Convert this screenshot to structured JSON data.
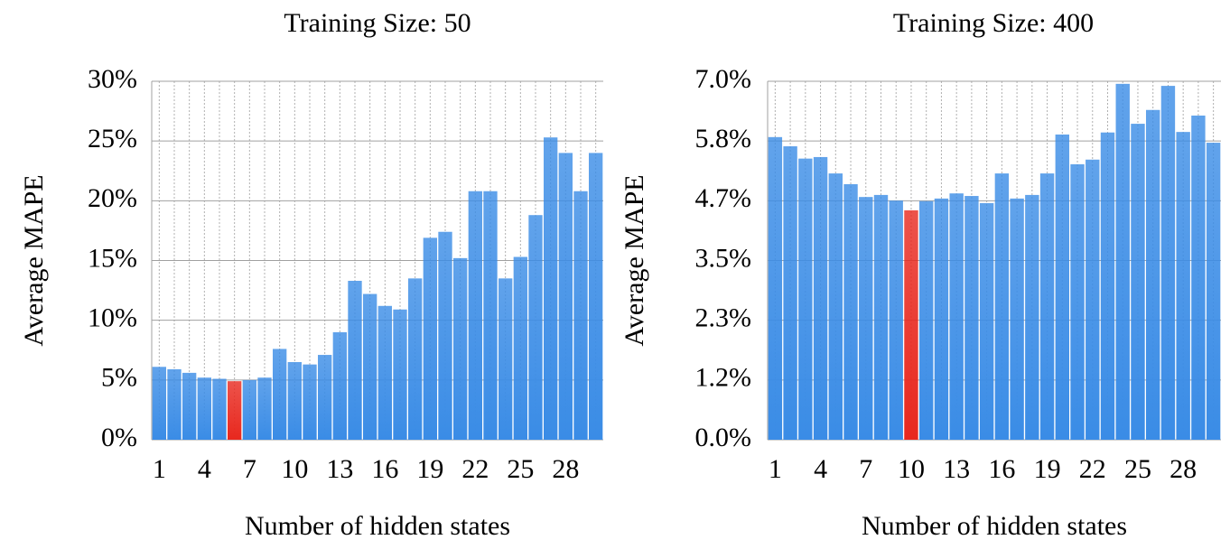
{
  "chart_data": [
    {
      "type": "bar",
      "title": "Training Size: 50",
      "x_label": "Number of hidden states",
      "y_label": "Average MAPE",
      "categories": [
        1,
        null,
        null,
        4,
        null,
        null,
        7,
        null,
        null,
        10,
        null,
        null,
        13,
        null,
        null,
        16,
        null,
        null,
        19,
        null,
        null,
        22,
        null,
        null,
        25,
        null,
        null,
        28,
        null,
        null
      ],
      "values": [
        6.1,
        5.9,
        5.6,
        5.2,
        5.1,
        4.9,
        5.0,
        5.2,
        7.6,
        6.5,
        6.3,
        7.1,
        9.0,
        13.3,
        12.2,
        11.2,
        10.9,
        13.5,
        16.9,
        17.4,
        15.2,
        20.8,
        20.8,
        13.5,
        15.3,
        18.8,
        25.3,
        24.0,
        20.8,
        24.0
      ],
      "colors": [
        "#3a8ce6",
        "#3a8ce6",
        "#3a8ce6",
        "#3a8ce6",
        "#3a8ce6",
        "#e8281e",
        "#3a8ce6",
        "#3a8ce6",
        "#3a8ce6",
        "#3a8ce6",
        "#3a8ce6",
        "#3a8ce6",
        "#3a8ce6",
        "#3a8ce6",
        "#3a8ce6",
        "#3a8ce6",
        "#3a8ce6",
        "#3a8ce6",
        "#3a8ce6",
        "#3a8ce6",
        "#3a8ce6",
        "#3a8ce6",
        "#3a8ce6",
        "#3a8ce6",
        "#3a8ce6",
        "#3a8ce6",
        "#3a8ce6",
        "#3a8ce6",
        "#3a8ce6",
        "#3a8ce6"
      ],
      "ylim": [
        0,
        30
      ],
      "yticks": [
        {
          "value": 0,
          "label": "0%"
        },
        {
          "value": 5,
          "label": "5%"
        },
        {
          "value": 10,
          "label": "10%"
        },
        {
          "value": 15,
          "label": "15%"
        },
        {
          "value": 20,
          "label": "20%"
        },
        {
          "value": 25,
          "label": "25%"
        },
        {
          "value": 30,
          "label": "30%"
        }
      ],
      "grid": true
    },
    {
      "type": "bar",
      "title": "Training Size: 400",
      "x_label": "Number of hidden states",
      "y_label": "Average MAPE",
      "categories": [
        1,
        null,
        null,
        4,
        null,
        null,
        7,
        null,
        null,
        10,
        null,
        null,
        13,
        null,
        null,
        16,
        null,
        null,
        19,
        null,
        null,
        22,
        null,
        null,
        25,
        null,
        null,
        28,
        null,
        null
      ],
      "values": [
        5.91,
        5.73,
        5.49,
        5.52,
        5.2,
        4.99,
        4.74,
        4.78,
        4.67,
        4.48,
        4.66,
        4.71,
        4.81,
        4.76,
        4.62,
        5.2,
        4.71,
        4.78,
        5.2,
        5.96,
        5.38,
        5.47,
        6.0,
        6.95,
        6.17,
        6.44,
        6.91,
        6.01,
        6.33,
        5.8
      ],
      "colors": [
        "#3a8ce6",
        "#3a8ce6",
        "#3a8ce6",
        "#3a8ce6",
        "#3a8ce6",
        "#3a8ce6",
        "#3a8ce6",
        "#3a8ce6",
        "#3a8ce6",
        "#e8281e",
        "#3a8ce6",
        "#3a8ce6",
        "#3a8ce6",
        "#3a8ce6",
        "#3a8ce6",
        "#3a8ce6",
        "#3a8ce6",
        "#3a8ce6",
        "#3a8ce6",
        "#3a8ce6",
        "#3a8ce6",
        "#3a8ce6",
        "#3a8ce6",
        "#3a8ce6",
        "#3a8ce6",
        "#3a8ce6",
        "#3a8ce6",
        "#3a8ce6",
        "#3a8ce6",
        "#3a8ce6"
      ],
      "ylim": [
        0,
        7
      ],
      "yticks": [
        {
          "value": 0,
          "label": "0.0%"
        },
        {
          "value": 1.1667,
          "label": "1.2%"
        },
        {
          "value": 2.3333,
          "label": "2.3%"
        },
        {
          "value": 3.5,
          "label": "3.5%"
        },
        {
          "value": 4.6667,
          "label": "4.7%"
        },
        {
          "value": 5.8333,
          "label": "5.8%"
        },
        {
          "value": 7,
          "label": "7.0%"
        }
      ],
      "grid": true
    }
  ]
}
